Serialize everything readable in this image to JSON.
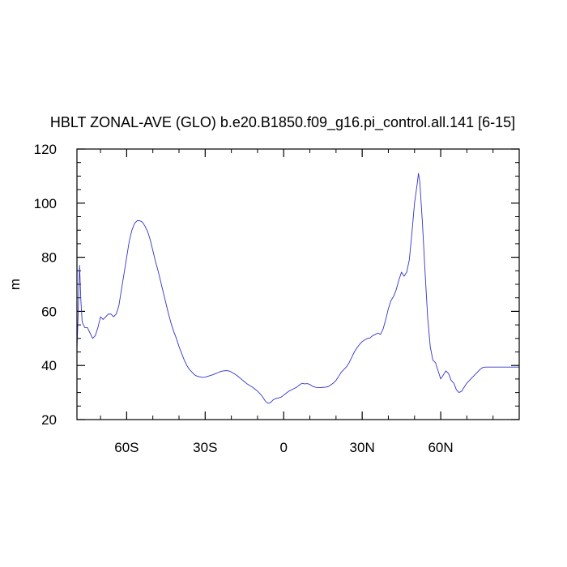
{
  "chart_data": {
    "type": "line",
    "title": "HBLT ZONAL-AVE (GLO) b.e20.B1850.f09_g16.pi_control.all.141 [6-15]",
    "xlabel": "",
    "ylabel": "m",
    "xlim": [
      -79,
      90
    ],
    "ylim": [
      20,
      120
    ],
    "x_ticks": [
      {
        "value": -60,
        "label": "60S"
      },
      {
        "value": -30,
        "label": "30S"
      },
      {
        "value": 0,
        "label": "0"
      },
      {
        "value": 30,
        "label": "30N"
      },
      {
        "value": 60,
        "label": "60N"
      }
    ],
    "y_ticks": [
      {
        "value": 20,
        "label": "20"
      },
      {
        "value": 40,
        "label": "40"
      },
      {
        "value": 60,
        "label": "60"
      },
      {
        "value": 80,
        "label": "80"
      },
      {
        "value": 100,
        "label": "100"
      },
      {
        "value": 120,
        "label": "120"
      }
    ],
    "grid": false,
    "series": [
      {
        "color": "#3333cc",
        "points": [
          [
            -79,
            46
          ],
          [
            -78.5,
            60
          ],
          [
            -78,
            77
          ],
          [
            -77.5,
            64
          ],
          [
            -77,
            56
          ],
          [
            -76,
            54
          ],
          [
            -75,
            54
          ],
          [
            -74,
            52
          ],
          [
            -73,
            50
          ],
          [
            -72,
            51
          ],
          [
            -71,
            54
          ],
          [
            -70,
            58
          ],
          [
            -69,
            57
          ],
          [
            -68,
            58
          ],
          [
            -67,
            59
          ],
          [
            -66,
            59
          ],
          [
            -65,
            58
          ],
          [
            -64,
            59
          ],
          [
            -63,
            62
          ],
          [
            -62,
            68
          ],
          [
            -61,
            74
          ],
          [
            -60,
            80
          ],
          [
            -59,
            86
          ],
          [
            -58,
            90
          ],
          [
            -57,
            92.5
          ],
          [
            -56,
            93.5
          ],
          [
            -55,
            93.5
          ],
          [
            -54,
            93
          ],
          [
            -53,
            91.5
          ],
          [
            -52,
            89.5
          ],
          [
            -51,
            86.5
          ],
          [
            -50,
            82.5
          ],
          [
            -49,
            78.5
          ],
          [
            -48,
            75
          ],
          [
            -47,
            71
          ],
          [
            -46,
            67
          ],
          [
            -45,
            63
          ],
          [
            -44,
            59
          ],
          [
            -43,
            55.5
          ],
          [
            -42,
            52.5
          ],
          [
            -41,
            50
          ],
          [
            -40,
            47
          ],
          [
            -39,
            44.5
          ],
          [
            -38,
            42
          ],
          [
            -37,
            40
          ],
          [
            -36,
            38.5
          ],
          [
            -35,
            37.5
          ],
          [
            -34,
            36.5
          ],
          [
            -33,
            36
          ],
          [
            -32,
            35.8
          ],
          [
            -31,
            35.6
          ],
          [
            -30,
            35.7
          ],
          [
            -29,
            36
          ],
          [
            -28,
            36.3
          ],
          [
            -27,
            36.6
          ],
          [
            -26,
            37
          ],
          [
            -25,
            37.4
          ],
          [
            -24,
            37.8
          ],
          [
            -23,
            38
          ],
          [
            -22,
            38.1
          ],
          [
            -21,
            38
          ],
          [
            -20,
            37.6
          ],
          [
            -19,
            37
          ],
          [
            -18,
            36.4
          ],
          [
            -17,
            35.6
          ],
          [
            -16,
            34.8
          ],
          [
            -15,
            34
          ],
          [
            -14,
            33.2
          ],
          [
            -13,
            32.6
          ],
          [
            -12,
            32
          ],
          [
            -11,
            31.3
          ],
          [
            -10,
            30.5
          ],
          [
            -9,
            29.5
          ],
          [
            -8,
            28.3
          ],
          [
            -7,
            26.8
          ],
          [
            -6,
            26
          ],
          [
            -5,
            26.3
          ],
          [
            -4,
            27.3
          ],
          [
            -3,
            27.8
          ],
          [
            -2,
            28
          ],
          [
            -1,
            28.3
          ],
          [
            0,
            29
          ],
          [
            1,
            29.8
          ],
          [
            2,
            30.5
          ],
          [
            3,
            31
          ],
          [
            4,
            31.5
          ],
          [
            5,
            32
          ],
          [
            6,
            32.8
          ],
          [
            7,
            33.4
          ],
          [
            8,
            33.2
          ],
          [
            9,
            33.3
          ],
          [
            10,
            33
          ],
          [
            11,
            32.3
          ],
          [
            12,
            32
          ],
          [
            13,
            31.8
          ],
          [
            14,
            31.8
          ],
          [
            15,
            31.9
          ],
          [
            16,
            32
          ],
          [
            17,
            32.2
          ],
          [
            18,
            32.8
          ],
          [
            19,
            33.5
          ],
          [
            20,
            34.5
          ],
          [
            21,
            36
          ],
          [
            22,
            37.5
          ],
          [
            23,
            38.5
          ],
          [
            24,
            39.5
          ],
          [
            25,
            41
          ],
          [
            26,
            43
          ],
          [
            27,
            45
          ],
          [
            28,
            46.5
          ],
          [
            29,
            47.8
          ],
          [
            30,
            48.8
          ],
          [
            31,
            49.5
          ],
          [
            32,
            50
          ],
          [
            33,
            50.2
          ],
          [
            34,
            51
          ],
          [
            35,
            51.5
          ],
          [
            36,
            52
          ],
          [
            37,
            51.5
          ],
          [
            38,
            53.5
          ],
          [
            39,
            57
          ],
          [
            40,
            61
          ],
          [
            41,
            64
          ],
          [
            42,
            65.5
          ],
          [
            43,
            68
          ],
          [
            44,
            71.5
          ],
          [
            45,
            74.5
          ],
          [
            46,
            73
          ],
          [
            47,
            74.5
          ],
          [
            48,
            79
          ],
          [
            49,
            89
          ],
          [
            50,
            100
          ],
          [
            51,
            107
          ],
          [
            51.5,
            111
          ],
          [
            52,
            108
          ],
          [
            53,
            93
          ],
          [
            54,
            75
          ],
          [
            55,
            58
          ],
          [
            56,
            47
          ],
          [
            57,
            42
          ],
          [
            58,
            41
          ],
          [
            59,
            38
          ],
          [
            60,
            35
          ],
          [
            61,
            36.5
          ],
          [
            62,
            38
          ],
          [
            63,
            37
          ],
          [
            64,
            34.5
          ],
          [
            65,
            33.5
          ],
          [
            66,
            31
          ],
          [
            67,
            30
          ],
          [
            68,
            30.5
          ],
          [
            69,
            32
          ],
          [
            70,
            33.5
          ],
          [
            71,
            34.5
          ],
          [
            72,
            35.5
          ],
          [
            73,
            36.5
          ],
          [
            74,
            37.5
          ],
          [
            75,
            38.5
          ],
          [
            76,
            39.2
          ],
          [
            77,
            39.4
          ],
          [
            78,
            39.4
          ],
          [
            79,
            39.4
          ],
          [
            80,
            39.4
          ],
          [
            81,
            39.4
          ],
          [
            82,
            39.4
          ],
          [
            83,
            39.4
          ],
          [
            84,
            39.4
          ],
          [
            85,
            39.4
          ],
          [
            86,
            39.4
          ],
          [
            87,
            39.4
          ],
          [
            88,
            39.4
          ],
          [
            89,
            39.4
          ],
          [
            90,
            39.4
          ]
        ]
      }
    ]
  }
}
